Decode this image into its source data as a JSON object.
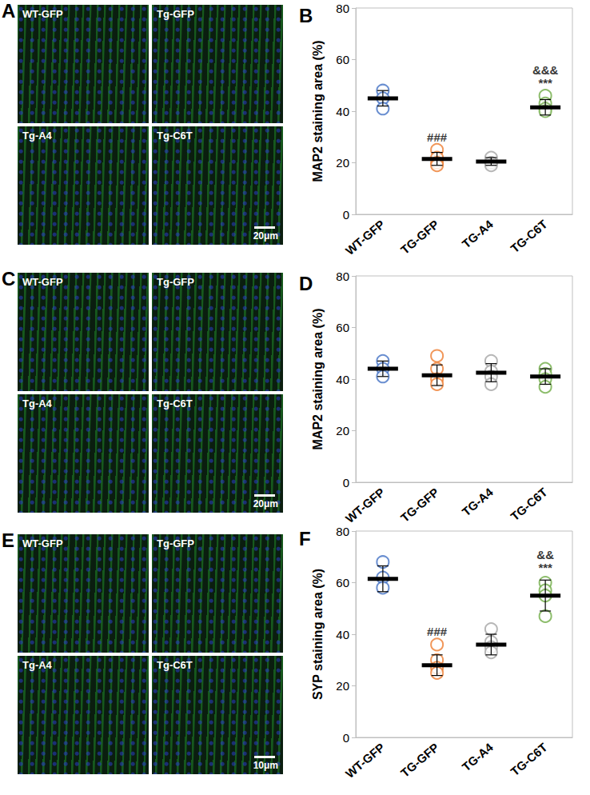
{
  "image_panels": [
    {
      "label": "A",
      "tiles": [
        "WT-GFP",
        "Tg-GFP",
        "Tg-A4",
        "Tg-C6T"
      ],
      "scale_bar": "20μm"
    },
    {
      "label": "C",
      "tiles": [
        "WT-GFP",
        "Tg-GFP",
        "Tg-A4",
        "Tg-C6T"
      ],
      "scale_bar": "20μm"
    },
    {
      "label": "E",
      "tiles": [
        "WT-GFP",
        "Tg-GFP",
        "Tg-A4",
        "Tg-C6T"
      ],
      "scale_bar": "10μm"
    }
  ],
  "chart_data": [
    {
      "type": "scatter",
      "title": "B",
      "y_label": "MAP2 staining area (%)",
      "categories": [
        "WT-GFP",
        "TG-GFP",
        "TG-A4",
        "TG-C6T"
      ],
      "colors": [
        "#4472c4",
        "#ed7d31",
        "#a5a5a5",
        "#70ad47"
      ],
      "points": [
        [
          48,
          45,
          41
        ],
        [
          25,
          22,
          20,
          19
        ],
        [
          22,
          20,
          19
        ],
        [
          46,
          43,
          41,
          40
        ]
      ],
      "means": [
        45,
        21.5,
        20.5,
        41.5
      ],
      "errors": [
        3,
        2.5,
        1.5,
        3
      ],
      "ylim": [
        0,
        80
      ],
      "yticks": [
        0,
        20,
        40,
        60,
        80
      ],
      "grid": false,
      "annotations": [
        {
          "category": "TG-GFP",
          "texts": [
            "###"
          ]
        },
        {
          "category": "TG-C6T",
          "texts": [
            "&&&",
            "***"
          ]
        }
      ]
    },
    {
      "type": "scatter",
      "title": "D",
      "y_label": "MAP2 staining area (%)",
      "categories": [
        "WT-GFP",
        "TG-GFP",
        "TG-A4",
        "TG-C6T"
      ],
      "colors": [
        "#4472c4",
        "#ed7d31",
        "#a5a5a5",
        "#70ad47"
      ],
      "points": [
        [
          47,
          44,
          41
        ],
        [
          49,
          44,
          40,
          38
        ],
        [
          47,
          43,
          41,
          38
        ],
        [
          44,
          42,
          40,
          37
        ]
      ],
      "means": [
        44,
        41.5,
        42.5,
        41
      ],
      "errors": [
        3,
        4,
        3.5,
        3
      ],
      "ylim": [
        0,
        80
      ],
      "yticks": [
        0,
        20,
        40,
        60,
        80
      ],
      "grid": false,
      "annotations": []
    },
    {
      "type": "scatter",
      "title": "F",
      "y_label": "SYP staining area (%)",
      "categories": [
        "WT-GFP",
        "TG-GFP",
        "TG-A4",
        "TG-C6T"
      ],
      "colors": [
        "#4472c4",
        "#ed7d31",
        "#a5a5a5",
        "#70ad47"
      ],
      "points": [
        [
          68,
          62,
          58
        ],
        [
          36,
          30,
          27,
          25
        ],
        [
          42,
          37,
          35,
          33
        ],
        [
          60,
          57,
          55,
          47
        ]
      ],
      "means": [
        61.5,
        28,
        36,
        55
      ],
      "errors": [
        5,
        4,
        4,
        6
      ],
      "ylim": [
        0,
        80
      ],
      "yticks": [
        0,
        20,
        40,
        60,
        80
      ],
      "grid": false,
      "annotations": [
        {
          "category": "TG-GFP",
          "texts": [
            "###"
          ]
        },
        {
          "category": "TG-C6T",
          "texts": [
            "&&",
            "***"
          ]
        }
      ]
    }
  ]
}
